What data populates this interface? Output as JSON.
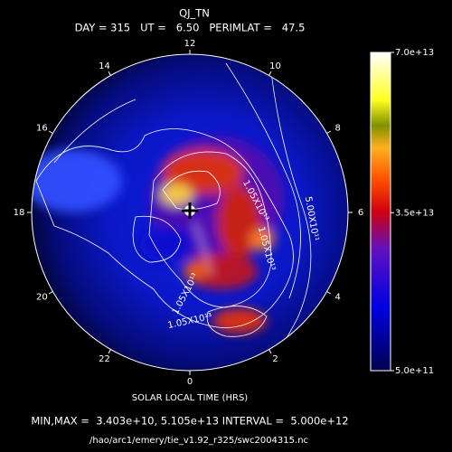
{
  "chart_data": {
    "type": "polar_contour",
    "title": "QJ_TN",
    "subtitle": "DAY = 315   UT =   6.50   PERIMLAT =   47.5",
    "xlabel": "SOLAR LOCAL TIME (HRS)",
    "thetaticks": [
      12,
      10,
      8,
      6,
      4,
      2,
      0,
      22,
      20,
      18,
      16,
      14
    ],
    "colorbar_lim": [
      500000000000.0,
      70000000000000.0
    ],
    "colorbar_ticks": [
      {
        "value": 70000000000000.0,
        "label": "7.0e+13"
      },
      {
        "value": 35000000000000.0,
        "label": "3.5e+13"
      },
      {
        "value": 500000000000.0,
        "label": "5.0e+11"
      }
    ],
    "contour_labels": [
      "1.05X10¹³",
      "5.00X10¹¹",
      "1.05X10¹³",
      "1.05X10¹³",
      "1.05X10¹³"
    ],
    "footer": "MIN,MAX =  3.403e+10, 5.105e+13 INTERVAL =  5.000e+12",
    "source": "/hao/arc1/emery/tie_v1.92_r325/swc2004315.nc"
  }
}
